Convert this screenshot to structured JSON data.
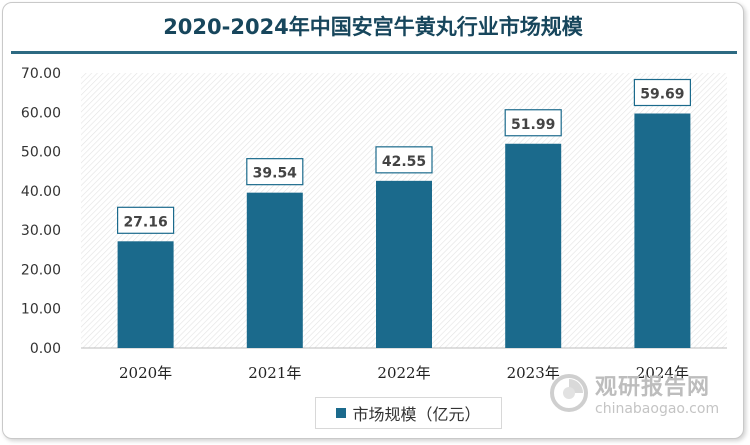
{
  "chart_data": {
    "type": "bar",
    "title": "2020-2024年中国安宫牛黄丸行业市场规模",
    "categories": [
      "2020年",
      "2021年",
      "2022年",
      "2023年",
      "2024年"
    ],
    "series": [
      {
        "name": "市场规模（亿元）",
        "values": [
          27.16,
          39.54,
          42.55,
          51.99,
          59.69
        ]
      }
    ],
    "data_labels": [
      "27.16",
      "39.54",
      "42.55",
      "51.99",
      "59.69"
    ],
    "y_ticks": [
      "0.00",
      "10.00",
      "20.00",
      "30.00",
      "40.00",
      "50.00",
      "60.00",
      "70.00"
    ],
    "ylim": [
      0,
      70
    ],
    "grid": false,
    "legend_position": "bottom",
    "colors": {
      "bar": "#1b6a8c",
      "title": "#17465c",
      "label_border": "#1b6a8c"
    }
  },
  "watermark": {
    "cn_text": "观研报告网",
    "en_text": "chinabaogao.com"
  }
}
